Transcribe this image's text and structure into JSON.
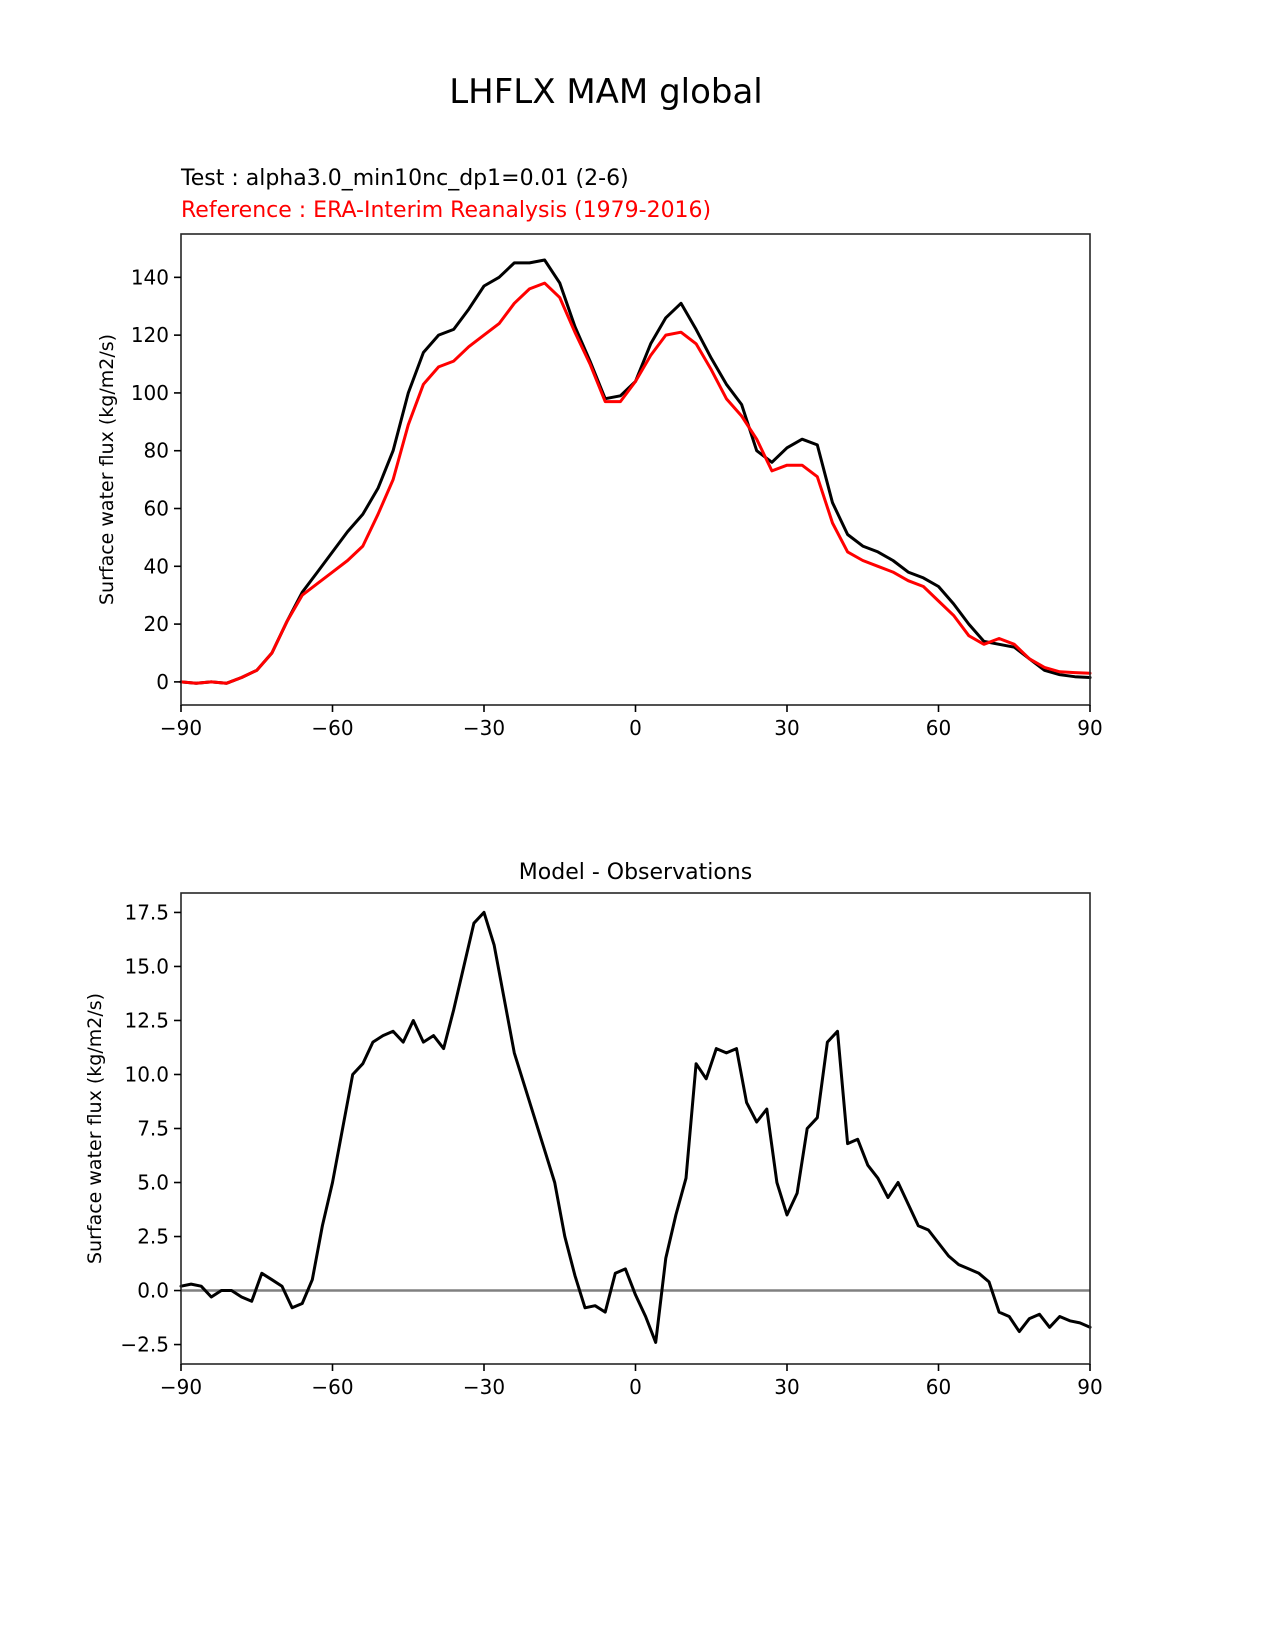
{
  "chart_data": [
    {
      "type": "line",
      "title": "LHFLX MAM global",
      "subtitle_test": "Test : alpha3.0_min10nc_dp1=0.01 (2-6)",
      "subtitle_reference": "Reference : ERA-Interim Reanalysis (1979-2016)",
      "xlabel": "",
      "ylabel": "Surface water flux (kg/m2/s)",
      "xlim": [
        -90,
        90
      ],
      "ylim": [
        -8,
        155
      ],
      "xticks": [
        -90,
        -60,
        -30,
        0,
        30,
        60,
        90
      ],
      "xtick_labels": [
        "−90",
        "−60",
        "−30",
        "0",
        "30",
        "60",
        "90"
      ],
      "yticks": [
        0,
        20,
        40,
        60,
        80,
        100,
        120,
        140
      ],
      "ytick_labels": [
        "0",
        "20",
        "40",
        "60",
        "80",
        "100",
        "120",
        "140"
      ],
      "grid": false,
      "x": [
        -90,
        -87,
        -84,
        -81,
        -78,
        -75,
        -72,
        -69,
        -66,
        -63,
        -60,
        -57,
        -54,
        -51,
        -48,
        -45,
        -42,
        -39,
        -36,
        -33,
        -30,
        -27,
        -24,
        -21,
        -18,
        -15,
        -12,
        -9,
        -6,
        -3,
        0,
        3,
        6,
        9,
        12,
        15,
        18,
        21,
        24,
        27,
        30,
        33,
        36,
        39,
        42,
        45,
        48,
        51,
        54,
        57,
        60,
        63,
        66,
        69,
        72,
        75,
        78,
        81,
        84,
        87,
        90
      ],
      "series": [
        {
          "name": "Test",
          "color": "#000000",
          "values": [
            0,
            -0.5,
            0,
            -0.5,
            1.5,
            4,
            10,
            21,
            31,
            38,
            45,
            52,
            58,
            67,
            80,
            100,
            114,
            120,
            122,
            129,
            137,
            140,
            145,
            145,
            146,
            138,
            123,
            111,
            98,
            99,
            104,
            117,
            126,
            131,
            122,
            112,
            103,
            96,
            80,
            76,
            81,
            84,
            82,
            62,
            51,
            47,
            45,
            42,
            38,
            36,
            33,
            27,
            20,
            14,
            13,
            12,
            8,
            4,
            2.5,
            1.8,
            1.5
          ]
        },
        {
          "name": "Reference",
          "color": "#ff0000",
          "values": [
            0,
            -0.5,
            0,
            -0.5,
            1.5,
            4,
            10,
            21,
            30,
            34,
            38,
            42,
            47,
            58,
            70,
            89,
            103,
            109,
            111,
            116,
            120,
            124,
            131,
            136,
            138,
            133,
            121,
            110,
            97,
            97,
            104,
            113,
            120,
            121,
            117,
            108,
            98,
            92,
            84,
            73,
            75,
            75,
            71,
            55,
            45,
            42,
            40,
            38,
            35,
            33,
            28,
            23,
            16,
            13,
            15,
            13,
            8,
            5,
            3.5,
            3.2,
            3.0
          ]
        }
      ]
    },
    {
      "type": "line",
      "title": "Model - Observations",
      "xlabel": "",
      "ylabel": "Surface water flux (kg/m2/s)",
      "xlim": [
        -90,
        90
      ],
      "ylim": [
        -3.4,
        18.4
      ],
      "xticks": [
        -90,
        -60,
        -30,
        0,
        30,
        60,
        90
      ],
      "xtick_labels": [
        "−90",
        "−60",
        "−30",
        "0",
        "30",
        "60",
        "90"
      ],
      "yticks": [
        -2.5,
        0.0,
        2.5,
        5.0,
        7.5,
        10.0,
        12.5,
        15.0,
        17.5
      ],
      "ytick_labels": [
        "−2.5",
        "0.0",
        "2.5",
        "5.0",
        "7.5",
        "10.0",
        "12.5",
        "15.0",
        "17.5"
      ],
      "grid": false,
      "zero_line_color": "#808080",
      "x": [
        -90,
        -88,
        -86,
        -84,
        -82,
        -80,
        -78,
        -76,
        -74,
        -72,
        -70,
        -68,
        -66,
        -64,
        -62,
        -60,
        -58,
        -56,
        -54,
        -52,
        -50,
        -48,
        -46,
        -44,
        -42,
        -40,
        -38,
        -36,
        -34,
        -32,
        -30,
        -28,
        -26,
        -24,
        -22,
        -20,
        -18,
        -16,
        -14,
        -12,
        -10,
        -8,
        -6,
        -4,
        -2,
        0,
        2,
        4,
        6,
        8,
        10,
        12,
        14,
        16,
        18,
        20,
        22,
        24,
        26,
        28,
        30,
        32,
        34,
        36,
        38,
        40,
        42,
        44,
        46,
        48,
        50,
        52,
        54,
        56,
        58,
        60,
        62,
        64,
        66,
        68,
        70,
        72,
        74,
        76,
        78,
        80,
        82,
        84,
        86,
        88,
        90
      ],
      "series": [
        {
          "name": "Model - Observations",
          "color": "#000000",
          "values": [
            0.2,
            0.3,
            0.2,
            -0.3,
            0.0,
            0.0,
            -0.3,
            -0.5,
            0.8,
            0.5,
            0.2,
            -0.8,
            -0.6,
            0.5,
            3.0,
            5.0,
            7.5,
            10.0,
            10.5,
            11.5,
            11.8,
            12.0,
            11.5,
            12.5,
            11.5,
            11.8,
            11.2,
            13.0,
            15.0,
            17.0,
            17.5,
            16.0,
            13.5,
            11.0,
            9.5,
            8.0,
            6.5,
            5.0,
            2.5,
            0.7,
            -0.8,
            -0.7,
            -1.0,
            0.8,
            1.0,
            -0.2,
            -1.2,
            -2.4,
            1.5,
            3.5,
            5.2,
            10.5,
            9.8,
            11.2,
            11.0,
            11.2,
            8.7,
            7.8,
            8.4,
            5.0,
            3.5,
            4.5,
            7.5,
            8.0,
            11.5,
            12.0,
            6.8,
            7.0,
            5.8,
            5.2,
            4.3,
            5.0,
            4.0,
            3.0,
            2.8,
            2.2,
            1.6,
            1.2,
            1.0,
            0.8,
            0.4,
            -1.0,
            -1.2,
            -1.9,
            -1.3,
            -1.1,
            -1.7,
            -1.2,
            -1.4,
            -1.5,
            -1.7
          ]
        }
      ]
    }
  ]
}
